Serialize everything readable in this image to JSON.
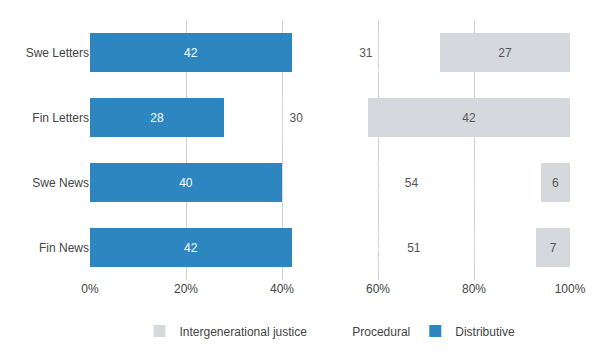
{
  "chart_data": {
    "type": "bar",
    "orientation": "horizontal",
    "stacked": true,
    "categories": [
      "Fin News",
      "Swe News",
      "Fin Letters",
      "Swe Letters"
    ],
    "series": [
      {
        "name": "Distributive",
        "color": "#2E86C1",
        "values": [
          42,
          40,
          28,
          42
        ]
      },
      {
        "name": "Procedural",
        "color": "#C0392B",
        "values": [
          51,
          54,
          30,
          31
        ]
      },
      {
        "name": "Intergenerational justice",
        "color": "#D5D8DC",
        "values": [
          7,
          6,
          42,
          27
        ]
      }
    ],
    "xlim": [
      0,
      100
    ],
    "xticks": [
      {
        "value": 0,
        "label": "0%"
      },
      {
        "value": 20,
        "label": "20%"
      },
      {
        "value": 40,
        "label": "40%"
      },
      {
        "value": 60,
        "label": "60%"
      },
      {
        "value": 80,
        "label": "80%"
      },
      {
        "value": 100,
        "label": "100%"
      }
    ],
    "grid": true,
    "legend": "bottom",
    "data_labels": true
  }
}
